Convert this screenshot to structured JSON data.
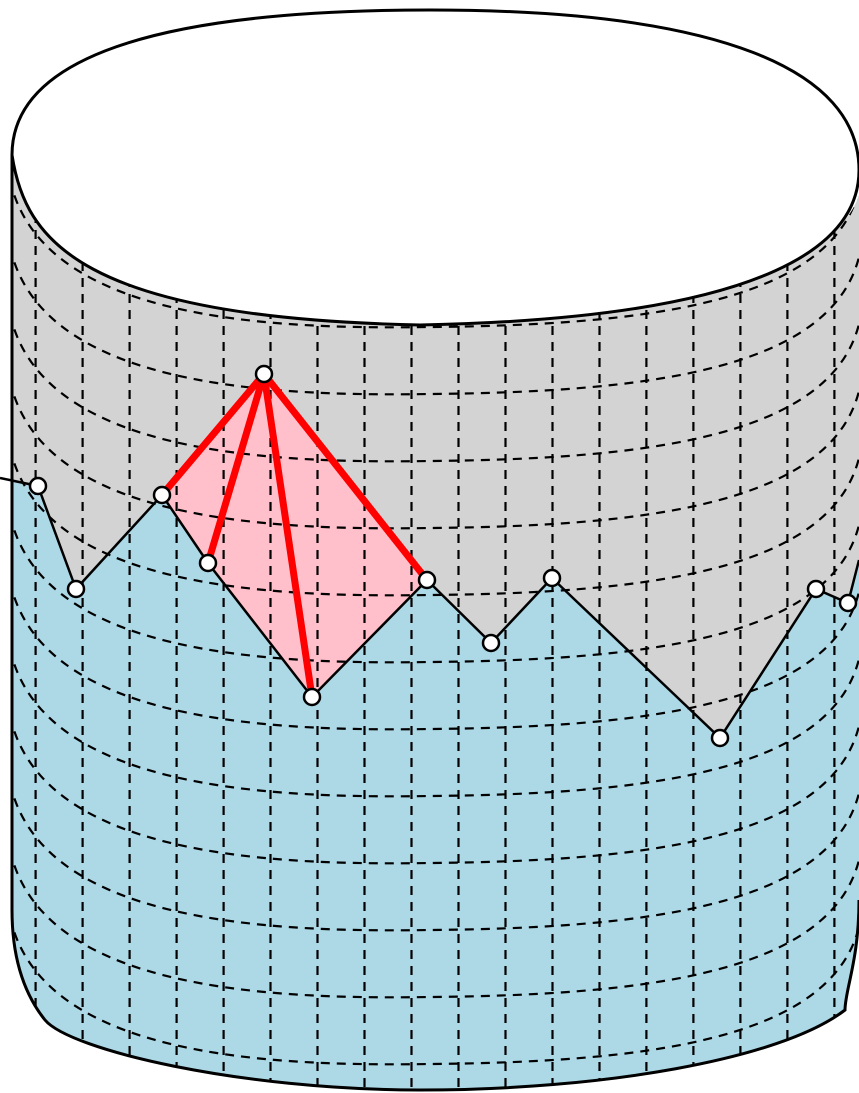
{
  "colors": {
    "upper_surface": "#d3d3d3",
    "lower_surface": "#add8e6",
    "highlight_fill": "#ffc0cb",
    "highlight_edges": "#ff0000",
    "outline": "#000000",
    "grid": "#000000",
    "vertex_fill": "#ffffff",
    "background": "#ffffff"
  },
  "grid": {
    "style": "dashed",
    "vertical_lines": 18,
    "horizontal_rings": 13
  },
  "boundary_path": {
    "vertex_count": 12
  },
  "highlight": {
    "shape": "quadrilateral",
    "apex_vertex_count": 1,
    "edge_count": 4
  },
  "icons": {
    "vertex": "circle-marker"
  }
}
